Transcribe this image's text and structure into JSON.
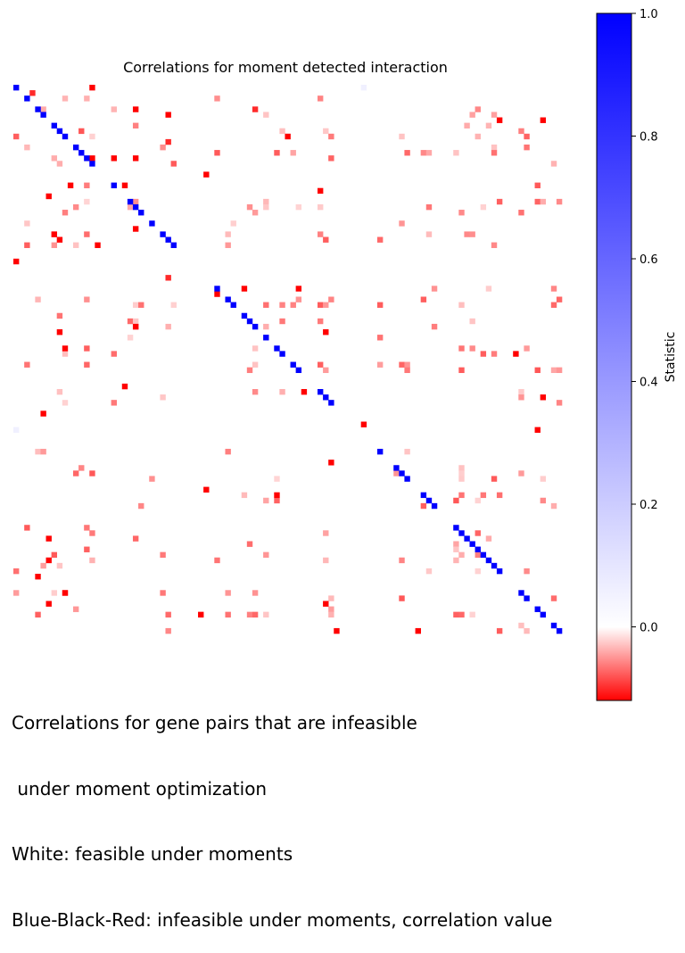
{
  "chart_data": {
    "type": "heatmap",
    "title": "Correlations for moment detected interaction",
    "colorbar": {
      "label": "Statistic",
      "min": -0.12,
      "max": 1.0,
      "ticks": [
        0.0,
        0.2,
        0.4,
        0.6,
        0.8,
        1.0
      ],
      "tick_labels": [
        "0.0",
        "0.2",
        "0.4",
        "0.6",
        "0.8",
        "1.0"
      ],
      "colors": {
        "low": "#ff0000",
        "mid": "#ffffff",
        "high": "#0000ff"
      }
    },
    "grid_size": 101,
    "diagonal_indices": [
      0,
      2,
      4,
      5,
      7,
      8,
      9,
      11,
      12,
      13,
      14,
      18,
      21,
      22,
      23,
      25,
      27,
      28,
      29,
      37,
      39,
      40,
      42,
      43,
      44,
      46,
      48,
      49,
      51,
      52,
      56,
      57,
      58,
      67,
      70,
      71,
      72,
      75,
      76,
      77,
      81,
      82,
      83,
      84,
      85,
      86,
      87,
      88,
      89,
      93,
      94,
      96,
      97,
      99,
      100
    ],
    "faint_blue_cells": [
      [
        0,
        64
      ],
      [
        63,
        0
      ]
    ],
    "cells": [
      [
        0,
        14,
        -0.12
      ],
      [
        1,
        3,
        -0.1
      ],
      [
        4,
        22,
        -0.12
      ],
      [
        5,
        28,
        -0.12
      ],
      [
        4,
        44,
        -0.1
      ],
      [
        6,
        89,
        -0.12
      ],
      [
        6,
        97,
        -0.12
      ],
      [
        9,
        50,
        -0.12
      ],
      [
        10,
        28,
        -0.1
      ],
      [
        13,
        14,
        -0.12
      ],
      [
        13,
        18,
        -0.12
      ],
      [
        13,
        22,
        -0.12
      ],
      [
        16,
        35,
        -0.12
      ],
      [
        18,
        20,
        -0.12
      ],
      [
        19,
        56,
        -0.12
      ],
      [
        20,
        6,
        -0.12
      ],
      [
        27,
        7,
        -0.12
      ],
      [
        28,
        8,
        -0.12
      ],
      [
        29,
        15,
        -0.12
      ],
      [
        32,
        0,
        -0.12
      ],
      [
        35,
        28,
        -0.1
      ],
      [
        37,
        42,
        -0.12
      ],
      [
        37,
        52,
        -0.12
      ],
      [
        38,
        37,
        -0.12
      ],
      [
        44,
        22,
        -0.12
      ],
      [
        45,
        57,
        -0.12
      ],
      [
        45,
        8,
        -0.12
      ],
      [
        48,
        9,
        -0.12
      ],
      [
        49,
        92,
        -0.12
      ],
      [
        56,
        53,
        -0.12
      ],
      [
        57,
        97,
        -0.12
      ],
      [
        60,
        5,
        -0.12
      ],
      [
        69,
        58,
        -0.12
      ],
      [
        75,
        48,
        -0.12
      ],
      [
        83,
        6,
        -0.12
      ],
      [
        87,
        6,
        -0.12
      ],
      [
        90,
        4,
        -0.12
      ],
      [
        93,
        9,
        -0.12
      ],
      [
        95,
        6,
        -0.12
      ],
      [
        95,
        57,
        -0.12
      ],
      [
        97,
        34,
        -0.12
      ],
      [
        100,
        59,
        -0.12
      ],
      [
        100,
        74,
        -0.12
      ],
      [
        74,
        35,
        -0.12
      ],
      [
        55,
        20,
        -0.12
      ],
      [
        62,
        64,
        -0.12
      ],
      [
        63,
        96,
        -0.12
      ],
      [
        18,
        10,
        -0.12
      ],
      [
        26,
        22,
        -0.12
      ]
    ]
  },
  "caption": {
    "line1": "Correlations for gene pairs that are infeasible",
    "line2": " under moment optimization",
    "line3": "White: feasible under moments",
    "line4": "Blue-Black-Red: infeasible under moments, correlation value"
  }
}
